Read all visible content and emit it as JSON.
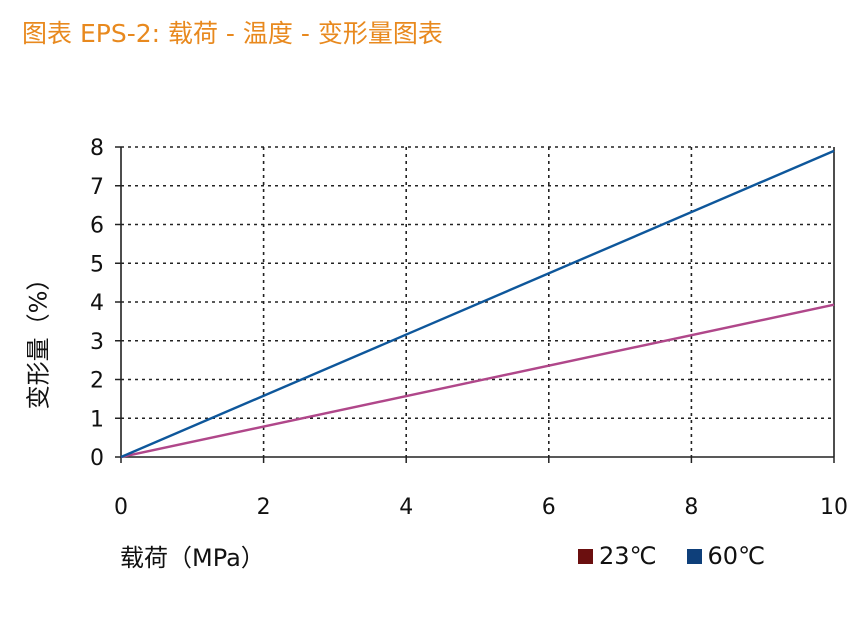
{
  "title": "图表 EPS-2: 载荷 - 温度 - 变形量图表",
  "colors": {
    "title": "#e8891e",
    "series_23": "#b0478a",
    "series_60": "#0e579b",
    "legend_23": "#6b0f0f",
    "legend_60": "#0e3f7a"
  },
  "chart_data": {
    "type": "line",
    "xlabel": "载荷（MPa）",
    "ylabel": "变形量（%）",
    "xlim": [
      0,
      10
    ],
    "ylim": [
      0,
      8
    ],
    "xticks": [
      0,
      2,
      4,
      6,
      8,
      10
    ],
    "yticks": [
      0,
      1,
      2,
      3,
      4,
      5,
      6,
      7,
      8
    ],
    "grid": true,
    "legend_position": "bottom-right",
    "series": [
      {
        "name": "23℃",
        "x": [
          0,
          10
        ],
        "y": [
          0,
          3.93
        ]
      },
      {
        "name": "60℃",
        "x": [
          0,
          10
        ],
        "y": [
          0,
          7.9
        ]
      }
    ]
  }
}
